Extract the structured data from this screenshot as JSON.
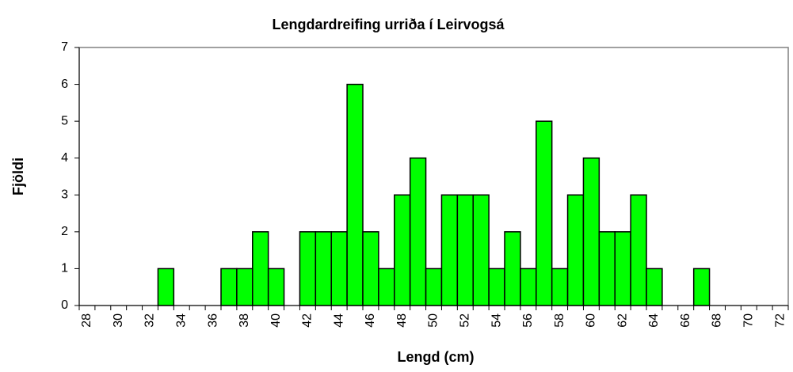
{
  "chart_data": {
    "type": "bar",
    "title": "Lengdardreifing urriða í Leirvogsá",
    "x_label": "Lengd (cm)",
    "y_label": "Fjöldi",
    "categories": [
      "28",
      null,
      "30",
      null,
      "32",
      null,
      "34",
      null,
      "36",
      null,
      "38",
      null,
      "40",
      null,
      "42",
      null,
      "44",
      null,
      "46",
      null,
      "48",
      null,
      "50",
      null,
      "52",
      null,
      "54",
      null,
      "56",
      null,
      "58",
      null,
      "60",
      null,
      "62",
      null,
      "64",
      null,
      "66",
      null,
      "68",
      null,
      "70",
      null,
      "72"
    ],
    "values": [
      0,
      0,
      0,
      0,
      0,
      1,
      0,
      0,
      0,
      1,
      1,
      2,
      1,
      0,
      2,
      2,
      2,
      6,
      2,
      1,
      3,
      4,
      1,
      3,
      3,
      3,
      1,
      2,
      1,
      5,
      1,
      3,
      4,
      2,
      2,
      3,
      1,
      0,
      0,
      1,
      0,
      0,
      0,
      0,
      0
    ],
    "color": "#00ff00",
    "ylim": [
      0,
      7
    ],
    "yticks": [
      0,
      1,
      2,
      3,
      4,
      5,
      6,
      7
    ],
    "grid": false
  }
}
